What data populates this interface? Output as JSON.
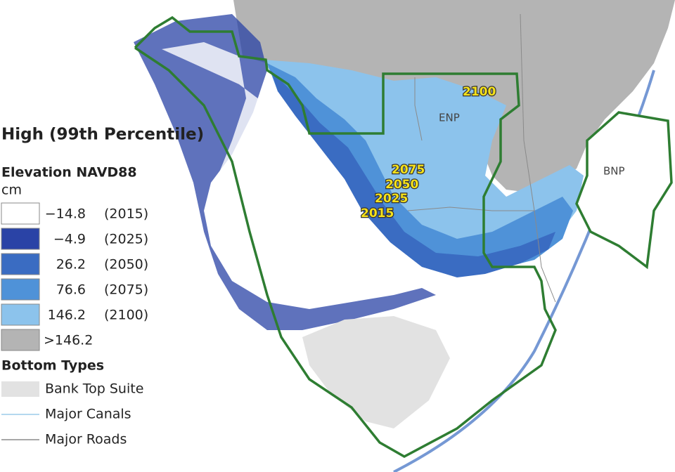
{
  "legend": {
    "title": "High (99th Percentile)",
    "subtitle": "Elevation NAVD88",
    "unit": "cm",
    "entries": [
      {
        "value": "−14.8",
        "year": "(2015)",
        "color": "#ffffff"
      },
      {
        "value": "−4.9",
        "year": "(2025)",
        "color": "#2a43a6"
      },
      {
        "value": "26.2",
        "year": "(2050)",
        "color": "#3a6cc2"
      },
      {
        "value": "76.6",
        "year": "(2075)",
        "color": "#4f92d8"
      },
      {
        "value": "146.2",
        "year": "(2100)",
        "color": "#8cc3ec"
      },
      {
        "value": ">146.2",
        "year": null,
        "color": "#b4b4b4"
      }
    ],
    "bottom_title": "Bottom Types",
    "bottom_entries": [
      {
        "label": "Bank Top Suite",
        "color": "#e2e2e2",
        "style": "fill"
      },
      {
        "label": "Major Canals",
        "color": "#9ccbea",
        "style": "line"
      },
      {
        "label": "Major Roads",
        "color": "#8a8a8a",
        "style": "line"
      }
    ]
  },
  "map_labels": {
    "years": [
      "2100",
      "2075",
      "2050",
      "2025",
      "2015"
    ],
    "parks": [
      "ENP",
      "BNP"
    ]
  }
}
